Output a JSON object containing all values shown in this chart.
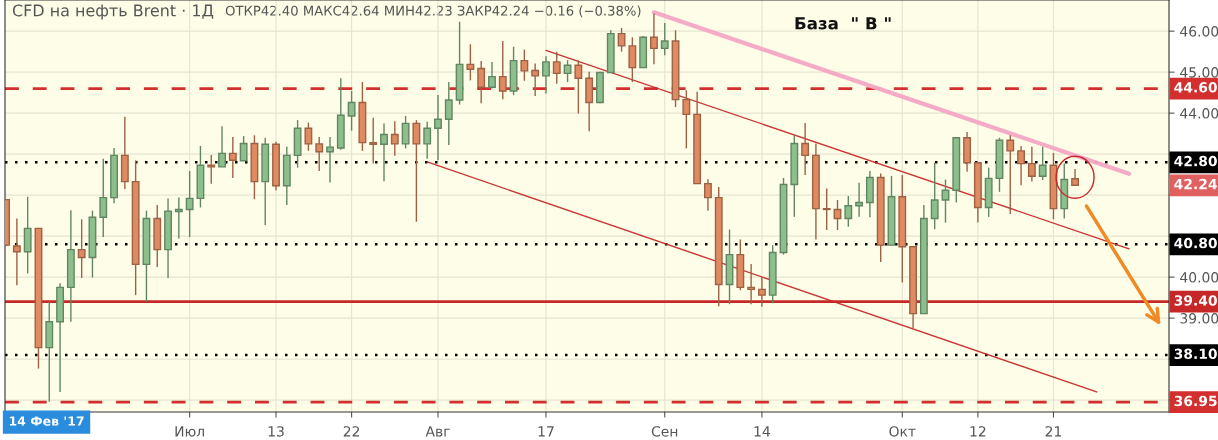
{
  "chart_data": {
    "type": "candlestick",
    "title": "CFD на нефть Brent · 1Д",
    "subtitle": "ОТКР42.40 МАКС42.64 МИН42.23 ЗАКР42.24 −0.16 (−0.38%)",
    "annotations": [
      "База  \" В \"",
      "14 Фев '17",
      "42.24"
    ],
    "categories": [
      null,
      null,
      null,
      null,
      null,
      null,
      null,
      null,
      null,
      null,
      null,
      null,
      null,
      null,
      null,
      null,
      null,
      "Июл",
      null,
      null,
      null,
      null,
      null,
      null,
      null,
      "13",
      null,
      null,
      null,
      null,
      null,
      null,
      "22",
      null,
      null,
      null,
      null,
      null,
      null,
      null,
      "Авг",
      null,
      null,
      null,
      null,
      null,
      null,
      null,
      null,
      null,
      "17",
      null,
      null,
      null,
      null,
      null,
      null,
      null,
      null,
      null,
      null,
      "Сен",
      null,
      null,
      null,
      null,
      null,
      null,
      null,
      null,
      "14",
      null,
      null,
      null,
      null,
      null,
      null,
      null,
      null,
      null,
      null,
      null,
      null,
      "Окт",
      null,
      null,
      null,
      null,
      null,
      null,
      "12",
      null,
      null,
      null,
      null,
      null,
      null,
      "21",
      null,
      null,
      null,
      null,
      null,
      null,
      null,
      null,
      null,
      null
    ],
    "ohlc": [
      [
        41.89,
        41.89,
        40.78,
        40.78
      ],
      [
        40.76,
        41.43,
        39.8,
        40.62
      ],
      [
        40.62,
        41.96,
        40.09,
        41.19
      ],
      [
        41.19,
        41.19,
        37.77,
        38.28
      ],
      [
        38.28,
        39.4,
        36.96,
        38.91
      ],
      [
        38.91,
        39.85,
        37.2,
        39.75
      ],
      [
        39.75,
        41.63,
        38.91,
        40.67
      ],
      [
        40.67,
        41.41,
        39.98,
        40.48
      ],
      [
        40.48,
        41.62,
        39.99,
        41.46
      ],
      [
        41.46,
        42.89,
        40.98,
        41.94
      ],
      [
        41.94,
        43.15,
        41.8,
        42.97
      ],
      [
        42.97,
        43.91,
        42.15,
        42.33
      ],
      [
        42.33,
        42.85,
        39.56,
        40.31
      ],
      [
        40.31,
        41.62,
        39.4,
        41.43
      ],
      [
        41.43,
        41.76,
        40.25,
        40.67
      ],
      [
        40.67,
        41.92,
        39.98,
        41.61
      ],
      [
        41.6,
        41.94,
        40.94,
        41.65
      ],
      [
        41.65,
        42.59,
        40.98,
        41.92
      ],
      [
        41.92,
        43.2,
        41.7,
        42.73
      ],
      [
        42.73,
        42.98,
        42.28,
        42.69
      ],
      [
        42.69,
        43.68,
        42.69,
        43.02
      ],
      [
        43.02,
        43.42,
        42.42,
        42.85
      ],
      [
        42.84,
        43.44,
        42.84,
        43.26
      ],
      [
        43.26,
        43.46,
        41.9,
        42.33
      ],
      [
        42.33,
        43.4,
        41.27,
        43.24
      ],
      [
        43.24,
        43.3,
        42.12,
        42.23
      ],
      [
        42.23,
        43.18,
        41.76,
        42.97
      ],
      [
        42.97,
        43.83,
        42.67,
        43.63
      ],
      [
        43.63,
        43.77,
        43.08,
        43.25
      ],
      [
        43.25,
        43.42,
        42.59,
        43.06
      ],
      [
        43.06,
        43.42,
        42.31,
        43.17
      ],
      [
        43.15,
        44.85,
        43.11,
        43.95
      ],
      [
        43.93,
        44.54,
        43.57,
        44.26
      ],
      [
        44.26,
        44.76,
        43.08,
        43.28
      ],
      [
        43.28,
        43.89,
        42.77,
        43.24
      ],
      [
        43.24,
        43.75,
        42.34,
        43.48
      ],
      [
        43.48,
        43.8,
        42.96,
        43.25
      ],
      [
        43.25,
        43.93,
        43.14,
        43.75
      ],
      [
        43.75,
        43.83,
        41.35,
        43.25
      ],
      [
        43.25,
        43.79,
        42.89,
        43.63
      ],
      [
        43.63,
        44.44,
        42.85,
        43.85
      ],
      [
        43.85,
        44.76,
        43.22,
        44.32
      ],
      [
        44.32,
        46.23,
        44.21,
        45.19
      ],
      [
        45.19,
        45.68,
        44.8,
        45.07
      ],
      [
        45.09,
        45.27,
        44.24,
        44.63
      ],
      [
        44.63,
        45.25,
        44.6,
        44.89
      ],
      [
        44.89,
        45.76,
        44.34,
        44.54
      ],
      [
        44.54,
        45.62,
        44.44,
        45.28
      ],
      [
        45.28,
        45.55,
        44.79,
        45.03
      ],
      [
        45.04,
        45.21,
        44.42,
        44.91
      ],
      [
        44.91,
        45.39,
        44.48,
        45.25
      ],
      [
        45.25,
        45.5,
        44.72,
        44.97
      ],
      [
        44.97,
        45.29,
        44.76,
        45.17
      ],
      [
        45.17,
        45.29,
        43.99,
        44.85
      ],
      [
        44.85,
        45.01,
        43.56,
        44.26
      ],
      [
        44.26,
        45.01,
        44.24,
        44.99
      ],
      [
        44.99,
        46.02,
        44.99,
        45.94
      ],
      [
        45.94,
        46.08,
        45.5,
        45.64
      ],
      [
        45.64,
        45.85,
        44.76,
        45.11
      ],
      [
        45.11,
        45.88,
        45.11,
        45.85
      ],
      [
        45.85,
        46.43,
        45.19,
        45.58
      ],
      [
        45.58,
        46.2,
        45.41,
        45.76
      ],
      [
        45.76,
        46.02,
        44.15,
        44.33
      ],
      [
        44.33,
        44.56,
        43.14,
        43.97
      ],
      [
        43.97,
        44.52,
        42.28,
        42.28
      ],
      [
        42.28,
        42.39,
        41.62,
        41.94
      ],
      [
        41.94,
        42.2,
        39.29,
        39.82
      ],
      [
        39.82,
        41.16,
        39.34,
        40.55
      ],
      [
        40.55,
        40.92,
        39.68,
        39.75
      ],
      [
        39.75,
        40.32,
        39.34,
        39.7
      ],
      [
        39.7,
        40.01,
        39.28,
        39.56
      ],
      [
        39.56,
        40.78,
        39.36,
        40.6
      ],
      [
        40.6,
        42.42,
        40.55,
        42.26
      ],
      [
        42.26,
        43.46,
        41.47,
        43.26
      ],
      [
        43.26,
        43.76,
        42.49,
        42.97
      ],
      [
        42.97,
        43.26,
        40.92,
        41.67
      ],
      [
        41.67,
        42.16,
        41.15,
        41.65
      ],
      [
        41.65,
        41.88,
        41.15,
        41.43
      ],
      [
        41.43,
        41.98,
        41.23,
        41.74
      ],
      [
        41.74,
        42.3,
        41.47,
        41.82
      ],
      [
        41.82,
        42.59,
        41.46,
        42.43
      ],
      [
        42.43,
        42.53,
        40.37,
        40.78
      ],
      [
        40.78,
        42.47,
        40.78,
        41.96
      ],
      [
        41.96,
        42.49,
        39.87,
        40.74
      ],
      [
        40.74,
        40.74,
        38.75,
        39.11
      ],
      [
        39.11,
        41.76,
        39.11,
        41.43
      ],
      [
        41.43,
        42.79,
        41.17,
        41.88
      ],
      [
        41.88,
        42.38,
        41.33,
        42.12
      ],
      [
        42.12,
        43.42,
        41.82,
        43.4
      ],
      [
        43.4,
        43.54,
        42.57,
        42.79
      ],
      [
        42.79,
        42.79,
        41.33,
        41.7
      ],
      [
        41.7,
        42.67,
        41.47,
        42.41
      ],
      [
        42.41,
        43.4,
        42.08,
        43.34
      ],
      [
        43.34,
        43.46,
        41.54,
        43.08
      ],
      [
        43.08,
        43.2,
        42.24,
        42.77
      ],
      [
        42.77,
        43.18,
        42.33,
        42.46
      ],
      [
        42.46,
        43.18,
        42.37,
        42.73
      ],
      [
        42.73,
        43.03,
        41.41,
        41.67
      ],
      [
        41.67,
        42.77,
        41.43,
        42.38
      ],
      [
        42.4,
        42.64,
        42.23,
        42.24
      ],
      null,
      null,
      null,
      null,
      null,
      null,
      null,
      null
    ],
    "colors": [
      "#e08a62",
      "#e08a62",
      "#8cbf8c",
      "#e08a62",
      "#8cbf8c",
      "#8cbf8c",
      "#8cbf8c",
      "#e08a62",
      "#8cbf8c",
      "#8cbf8c",
      "#8cbf8c",
      "#e08a62",
      "#e08a62",
      "#8cbf8c",
      "#e08a62",
      "#8cbf8c",
      "#8cbf8c",
      "#8cbf8c",
      "#8cbf8c",
      "#e08a62",
      "#8cbf8c",
      "#e08a62",
      "#8cbf8c",
      "#e08a62",
      "#8cbf8c",
      "#e08a62",
      "#8cbf8c",
      "#8cbf8c",
      "#e08a62",
      "#e08a62",
      "#8cbf8c",
      "#8cbf8c",
      "#8cbf8c",
      "#e08a62",
      "#e08a62",
      "#8cbf8c",
      "#e08a62",
      "#8cbf8c",
      "#e08a62",
      "#8cbf8c",
      "#8cbf8c",
      "#8cbf8c",
      "#8cbf8c",
      "#e08a62",
      "#e08a62",
      "#8cbf8c",
      "#e08a62",
      "#8cbf8c",
      "#e08a62",
      "#e08a62",
      "#8cbf8c",
      "#e08a62",
      "#8cbf8c",
      "#e08a62",
      "#e08a62",
      "#8cbf8c",
      "#8cbf8c",
      "#e08a62",
      "#e08a62",
      "#8cbf8c",
      "#e08a62",
      "#8cbf8c",
      "#e08a62",
      "#e08a62",
      "#e08a62",
      "#e08a62",
      "#e08a62",
      "#8cbf8c",
      "#e08a62",
      "#e08a62",
      "#e08a62",
      "#8cbf8c",
      "#8cbf8c",
      "#8cbf8c",
      "#e08a62",
      "#e08a62",
      "#e08a62",
      "#e08a62",
      "#8cbf8c",
      "#8cbf8c",
      "#8cbf8c",
      "#e08a62",
      "#8cbf8c",
      "#e08a62",
      "#e08a62",
      "#8cbf8c",
      "#8cbf8c",
      "#8cbf8c",
      "#8cbf8c",
      "#e08a62",
      "#e08a62",
      "#8cbf8c",
      "#8cbf8c",
      "#e08a62",
      "#e08a62",
      "#e08a62",
      "#8cbf8c",
      "#e08a62",
      "#8cbf8c",
      "#e08a62",
      null,
      null,
      null,
      null,
      null,
      null,
      null,
      null
    ],
    "series": [
      {
        "type": "line",
        "values": [
          null,
          null,
          null,
          null,
          null,
          null,
          null,
          null,
          null,
          null,
          null,
          null,
          null,
          null,
          null,
          null,
          null,
          null,
          null,
          null,
          null,
          null,
          null,
          null,
          null,
          null,
          null,
          null,
          null,
          null,
          null,
          null,
          null,
          null,
          null,
          null,
          null,
          null,
          null,
          null,
          null,
          null,
          null,
          null,
          null,
          null,
          null,
          null,
          null,
          null,
          null,
          null,
          null,
          null,
          null,
          null,
          null,
          null,
          null,
          null,
          46.46,
          null,
          null,
          null,
          null,
          null,
          null,
          null,
          null,
          null,
          null,
          null,
          null,
          null,
          null,
          null,
          null,
          null,
          null,
          null,
          null,
          null,
          null,
          null,
          null,
          null,
          null,
          null,
          null,
          null,
          null,
          null,
          null,
          null,
          null,
          null,
          null,
          null,
          null,
          null,
          null,
          null,
          null,
          null,
          42.52,
          null,
          null,
          null
        ],
        "color": "#f4a6c4"
      },
      {
        "type": "line",
        "values": [
          null,
          null,
          null,
          null,
          null,
          null,
          null,
          null,
          null,
          null,
          null,
          null,
          null,
          null,
          null,
          null,
          null,
          null,
          null,
          null,
          null,
          null,
          null,
          null,
          null,
          null,
          null,
          null,
          null,
          null,
          null,
          null,
          null,
          null,
          null,
          null,
          null,
          null,
          null,
          null,
          null,
          null,
          null,
          null,
          null,
          null,
          null,
          null,
          null,
          null,
          45.53,
          null,
          null,
          null,
          null,
          null,
          null,
          null,
          null,
          null,
          null,
          null,
          null,
          null,
          null,
          null,
          null,
          null,
          null,
          null,
          null,
          null,
          null,
          null,
          null,
          null,
          null,
          null,
          null,
          null,
          null,
          null,
          null,
          null,
          null,
          null,
          null,
          null,
          null,
          null,
          null,
          null,
          null,
          null,
          null,
          null,
          null,
          null,
          null,
          null,
          null,
          null,
          null,
          null,
          40.69,
          null,
          null,
          null
        ],
        "color": "#c62828"
      },
      {
        "type": "line",
        "values": [
          null,
          null,
          null,
          null,
          null,
          null,
          null,
          null,
          null,
          null,
          null,
          null,
          null,
          null,
          null,
          null,
          null,
          null,
          null,
          null,
          null,
          null,
          null,
          null,
          null,
          null,
          null,
          null,
          null,
          null,
          null,
          null,
          null,
          null,
          null,
          null,
          null,
          null,
          null,
          42.81,
          null,
          null,
          null,
          null,
          null,
          null,
          null,
          null,
          null,
          null,
          null,
          null,
          null,
          null,
          null,
          null,
          null,
          null,
          null,
          null,
          null,
          null,
          null,
          null,
          null,
          null,
          null,
          null,
          null,
          null,
          null,
          null,
          null,
          null,
          null,
          null,
          null,
          null,
          null,
          null,
          null,
          null,
          null,
          null,
          null,
          null,
          null,
          null,
          null,
          null,
          null,
          null,
          null,
          null,
          null,
          null,
          null,
          null,
          null,
          null,
          null,
          37.2,
          null,
          null,
          null,
          null,
          null,
          null
        ],
        "color": "#c62828"
      }
    ],
    "ref_lines": [
      {
        "axis": "y",
        "value": 44.6,
        "label": "44.60",
        "color": "#d32f2f",
        "line_style": "dashed"
      },
      {
        "axis": "y",
        "value": 42.8,
        "label": "42.80",
        "color": "#000000",
        "line_style": "dotted"
      },
      {
        "axis": "y",
        "value": 40.8,
        "label": "40.80",
        "color": "#000000",
        "line_style": "dotted"
      },
      {
        "axis": "y",
        "value": 39.4,
        "label": "39.40",
        "color": "#c62828",
        "line_style": "solid"
      },
      {
        "axis": "y",
        "value": 38.1,
        "label": "38.10",
        "color": "#000000",
        "line_style": "dotted"
      },
      {
        "axis": "y",
        "value": 36.95,
        "label": "36.95",
        "color": "#d32f2f",
        "line_style": "dashed"
      }
    ],
    "ylim": [
      36.71,
      46.76
    ],
    "yticks": [
      {
        "value": 37,
        "label": null
      },
      {
        "value": 38,
        "label": null
      },
      {
        "value": 39,
        "label": "39.00"
      },
      {
        "value": 40,
        "label": "40.00"
      },
      {
        "value": 41,
        "label": null
      },
      {
        "value": 42,
        "label": null
      },
      {
        "value": 43,
        "label": null
      },
      {
        "value": 44,
        "label": "44.00"
      },
      {
        "value": 45,
        "label": "45.00"
      },
      {
        "value": 46,
        "label": "46.00"
      }
    ],
    "grid": true,
    "legend": false
  }
}
